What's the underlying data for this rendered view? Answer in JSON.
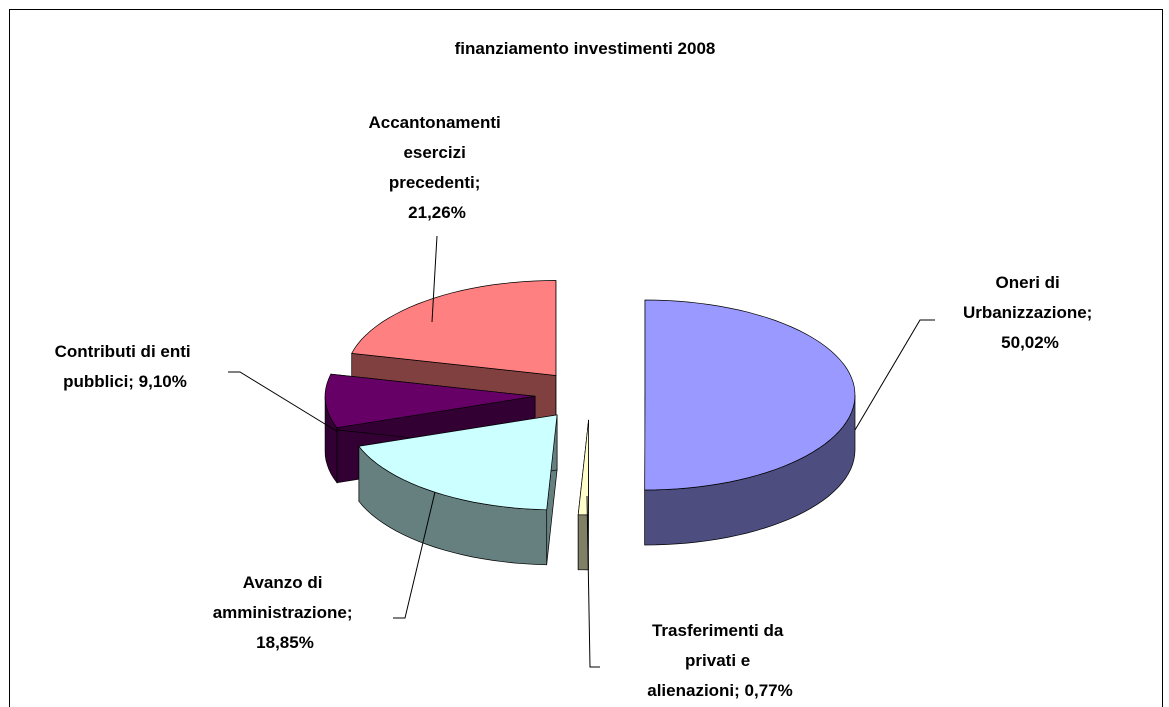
{
  "chart_data": {
    "type": "pie",
    "title": "finanziamento investimenti 2008",
    "values": [
      50.02,
      0.77,
      18.85,
      9.1,
      21.26
    ],
    "value_labels": [
      "Oneri di Urbanizzazione; 50,02%",
      "Trasferimenti da privati e alienazioni; 0,77%",
      "Avanzo di amministrazione; 18,85%",
      "Contributi di enti pubblici; 9,10%",
      "Accantonamenti esercizi precedenti; 21,26%"
    ],
    "colors": [
      "#9999ff",
      "#ffffcc",
      "#ccffff",
      "#660066",
      "#ff8080"
    ],
    "exploded": true,
    "three_d": true
  }
}
